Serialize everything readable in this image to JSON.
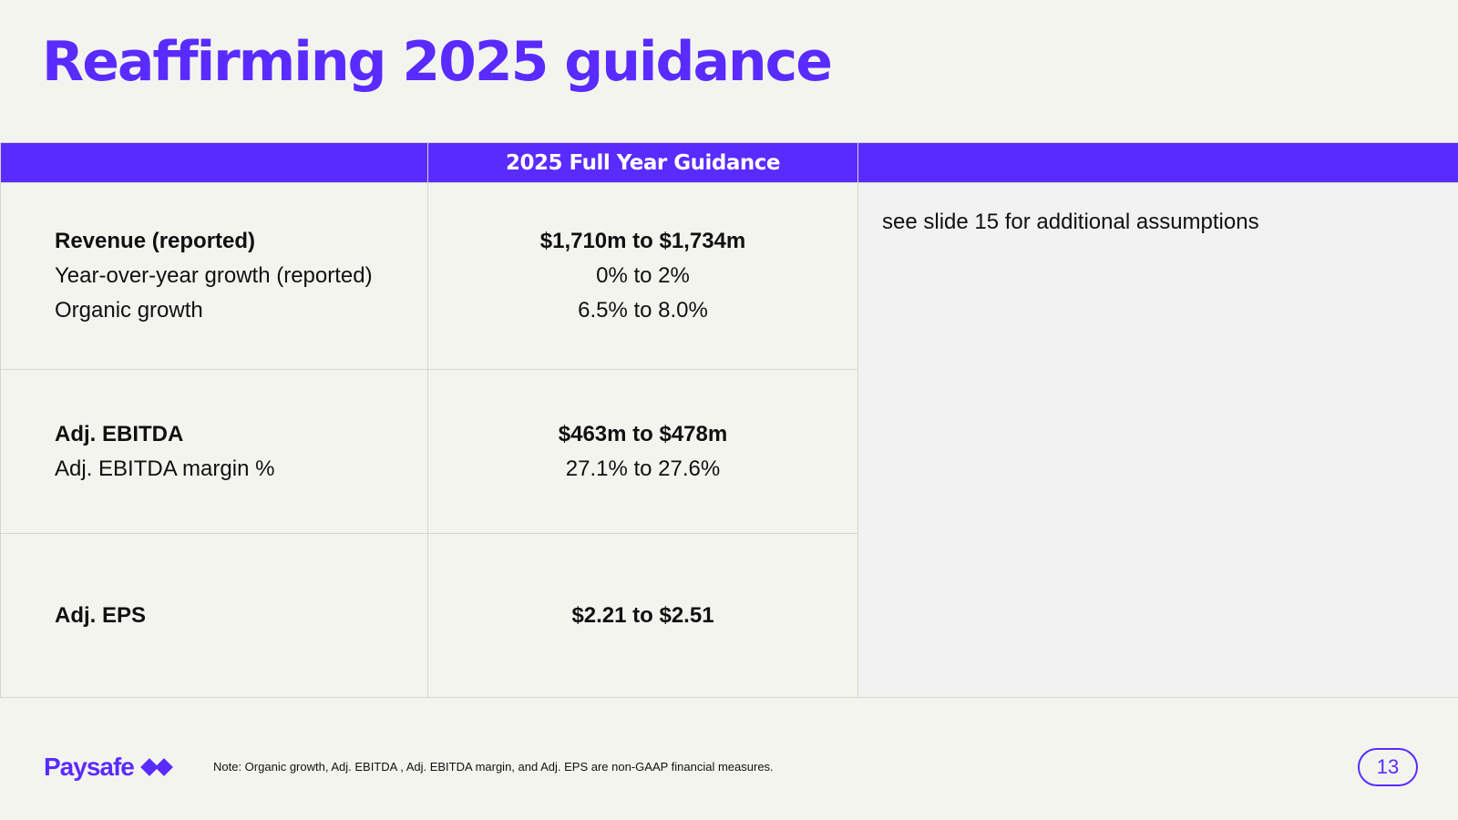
{
  "title": "Reaffirming 2025 guidance",
  "table": {
    "header": {
      "metric": "",
      "guidance": "2025 Full Year Guidance",
      "notes": ""
    },
    "rows": [
      {
        "metrics": [
          "Revenue (reported)",
          "Year-over-year growth (reported)",
          "Organic growth"
        ],
        "values": [
          "$1,710m to $1,734m",
          "0% to 2%",
          "6.5% to 8.0%"
        ]
      },
      {
        "metrics": [
          "Adj. EBITDA",
          "Adj. EBITDA margin %"
        ],
        "values": [
          "$463m to $478m",
          "27.1% to 27.6%"
        ]
      },
      {
        "metrics": [
          "Adj. EPS"
        ],
        "values": [
          "$2.21 to $2.51"
        ]
      }
    ],
    "notes": "see slide 15 for additional assumptions"
  },
  "footer": {
    "logo_text": "Paysafe",
    "logo_icon": "paysafe-diamond-icon",
    "note": "Note: Organic growth, Adj. EBITDA , Adj. EBITDA margin, and Adj. EPS are non-GAAP financial measures.",
    "page_number": "13"
  },
  "colors": {
    "accent": "#5a2bff",
    "background": "#f4f4ef",
    "notes_panel": "#f2f2f2",
    "grid": "#d5d5d1",
    "text": "#111111"
  }
}
